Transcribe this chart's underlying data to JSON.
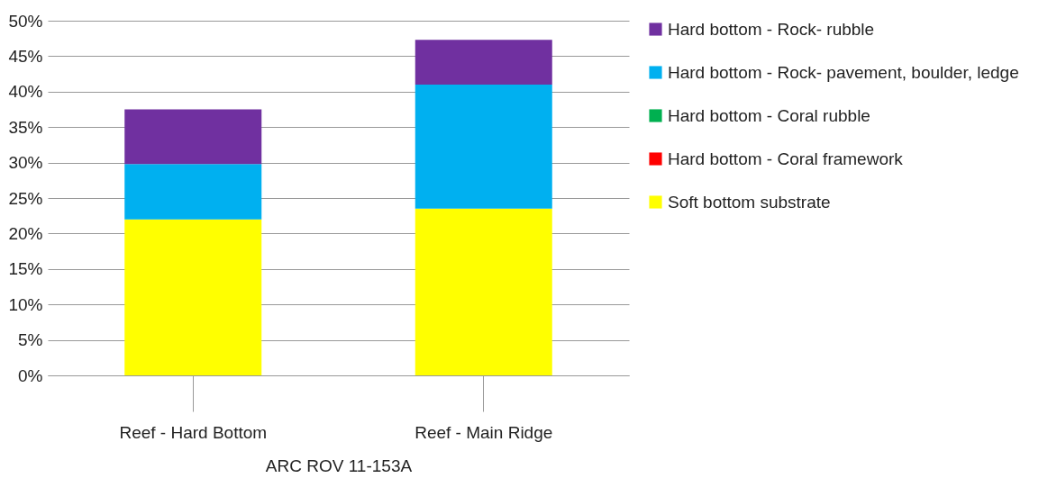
{
  "chart_data": {
    "type": "bar",
    "stacked": true,
    "xlabel": "ARC ROV 11-153A",
    "categories": [
      "Reef - Hard Bottom",
      "Reef - Main Ridge"
    ],
    "series": [
      {
        "name": "Soft bottom substrate",
        "color": "#ffff00",
        "values": [
          22,
          23.5
        ]
      },
      {
        "name": "Hard bottom - Coral framework",
        "color": "#ff0000",
        "values": [
          0,
          0
        ]
      },
      {
        "name": "Hard bottom - Coral rubble",
        "color": "#00b050",
        "values": [
          0,
          0
        ]
      },
      {
        "name": "Hard bottom - Rock- pavement, boulder, ledge",
        "color": "#00b0f0",
        "values": [
          7.8,
          17.5
        ]
      },
      {
        "name": "Hard bottom - Rock- rubble",
        "color": "#7030a0",
        "values": [
          7.7,
          6.3
        ]
      }
    ],
    "ylim": [
      0,
      50
    ],
    "yticks": [
      {
        "value": 0,
        "label": "0%"
      },
      {
        "value": 5,
        "label": "5%"
      },
      {
        "value": 10,
        "label": "10%"
      },
      {
        "value": 15,
        "label": "15%"
      },
      {
        "value": 20,
        "label": "20%"
      },
      {
        "value": 25,
        "label": "25%"
      },
      {
        "value": 30,
        "label": "30%"
      },
      {
        "value": 35,
        "label": "35%"
      },
      {
        "value": 40,
        "label": "40%"
      },
      {
        "value": 45,
        "label": "45%"
      },
      {
        "value": 50,
        "label": "50%"
      }
    ],
    "grid": "y",
    "legend": "right"
  }
}
